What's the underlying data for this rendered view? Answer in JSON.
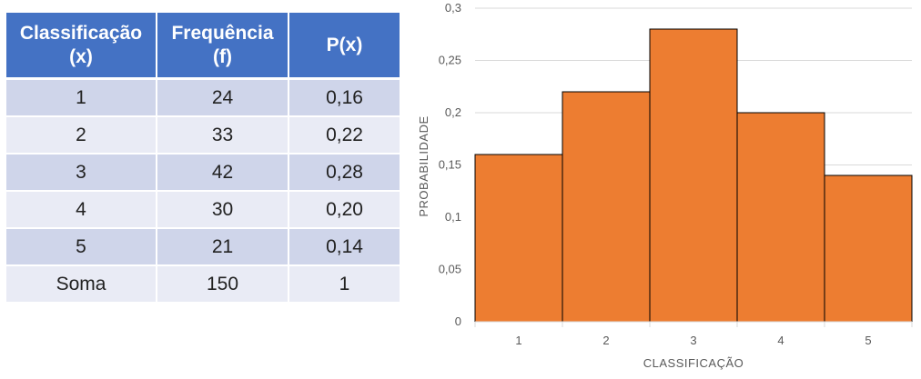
{
  "table": {
    "headers": [
      {
        "line1": "Classificação",
        "line2": "(x)"
      },
      {
        "line1": "Frequência",
        "line2": "(f)"
      },
      {
        "line1": "P(x)",
        "line2": ""
      }
    ],
    "rows": [
      [
        "1",
        "24",
        "0,16"
      ],
      [
        "2",
        "33",
        "0,22"
      ],
      [
        "3",
        "42",
        "0,28"
      ],
      [
        "4",
        "30",
        "0,20"
      ],
      [
        "5",
        "21",
        "0,14"
      ],
      [
        "Soma",
        "150",
        "1"
      ]
    ],
    "header_color": "#4472c4",
    "row_dark_color": "#cfd5ea",
    "row_light_color": "#e9ebf5"
  },
  "chart_data": {
    "type": "bar",
    "categories": [
      "1",
      "2",
      "3",
      "4",
      "5"
    ],
    "values": [
      0.16,
      0.22,
      0.28,
      0.2,
      0.14
    ],
    "xlabel": "CLASSIFICAÇÃO",
    "ylabel": "PROBABILIDADE",
    "ylim": [
      0,
      0.3
    ],
    "yticks": [
      0,
      0.05,
      0.1,
      0.15,
      0.2,
      0.25,
      0.3
    ],
    "ytick_labels": [
      "0",
      "0,05",
      "0,1",
      "0,15",
      "0,2",
      "0,25",
      "0,3"
    ],
    "grid": true,
    "bar_color": "#ed7d31",
    "bar_edge_color": "#000000"
  }
}
